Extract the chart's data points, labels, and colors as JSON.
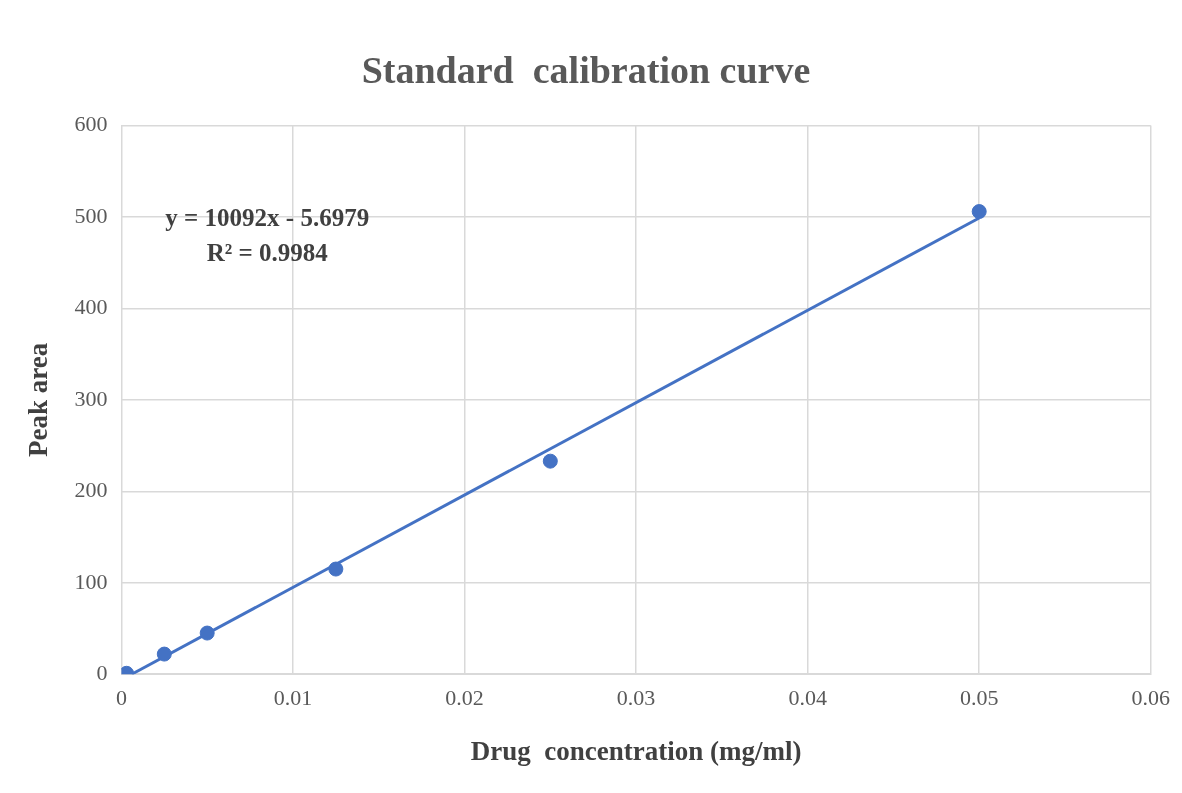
{
  "chart_data": {
    "type": "scatter",
    "title": "Standard  calibration curve",
    "xlabel": "Drug  concentration (mg/ml)",
    "ylabel": "Peak area",
    "x": [
      0.0003,
      0.0025,
      0.005,
      0.0125,
      0.025,
      0.05
    ],
    "series": [
      {
        "type": "scatter",
        "color": "#4472c4",
        "values": [
          1,
          22,
          45,
          115,
          233,
          506
        ],
        "marker": "circle"
      },
      {
        "type": "line",
        "color": "#4472c4",
        "x": [
          0.0006,
          0.05
        ],
        "values": [
          0,
          499
        ],
        "marker": "none"
      }
    ],
    "annotations": [
      "y = 10092x - 5.6979",
      "R² = 0.9984"
    ],
    "xlim": [
      0,
      0.06
    ],
    "xticks": [
      0,
      0.01,
      0.02,
      0.03,
      0.04,
      0.05,
      0.06
    ],
    "ylim": [
      0,
      600
    ],
    "yticks": [
      0,
      100,
      200,
      300,
      400,
      500,
      600
    ],
    "grid": true,
    "legend": false
  }
}
